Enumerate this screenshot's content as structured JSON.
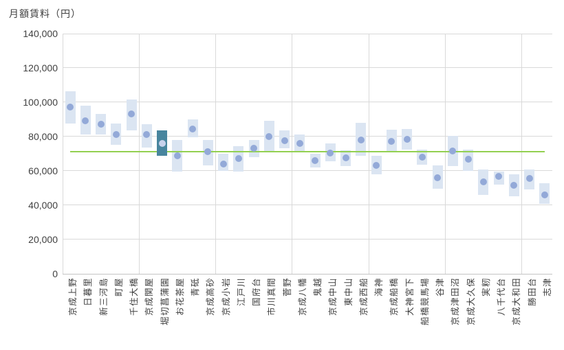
{
  "title": "月額賃料（円）",
  "chart_data": {
    "type": "range-bar-with-markers",
    "title": "月額賃料（円）",
    "xlabel": "",
    "ylabel": "月額賃料（円）",
    "ylim": [
      0,
      140000
    ],
    "yticks": [
      0,
      20000,
      40000,
      60000,
      80000,
      100000,
      120000,
      140000
    ],
    "grid": "horizontal gridlines every 20000; vertical group separators every 5 categories",
    "legend": "none",
    "categories": [
      "京成上野",
      "日暮里",
      "新三河島",
      "町屋",
      "千住大橋",
      "京成関屋",
      "堀切菖蒲園",
      "お花茶屋",
      "青砥",
      "京成高砂",
      "京成小岩",
      "江戸川",
      "国府台",
      "市川真間",
      "菅野",
      "京成八幡",
      "鬼越",
      "京成中山",
      "東中山",
      "京成西船",
      "海神",
      "京成船橋",
      "大神宮下",
      "船橋競馬場",
      "谷津",
      "京成津田沼",
      "京成大久保",
      "実籾",
      "八千代台",
      "京成大和田",
      "勝田台",
      "志津"
    ],
    "highlighted_category": "堀切菖蒲園",
    "highlighted_category_index": 6,
    "series": [
      {
        "name": "rent-range",
        "type": "floating-bar",
        "low": [
          87500,
          81000,
          81000,
          75000,
          83500,
          73500,
          68500,
          59500,
          79500,
          63000,
          60000,
          59500,
          68000,
          70500,
          73000,
          70500,
          62000,
          65500,
          62500,
          68500,
          58000,
          70500,
          72500,
          63500,
          49500,
          62500,
          60000,
          46000,
          52000,
          45000,
          49000,
          40500
        ],
        "high": [
          106500,
          98000,
          93000,
          87500,
          101500,
          87000,
          83500,
          78000,
          90000,
          78000,
          70000,
          74500,
          78000,
          89000,
          83500,
          81000,
          70000,
          76000,
          72000,
          88000,
          68500,
          84000,
          84500,
          72500,
          63000,
          80500,
          72500,
          60500,
          59500,
          58000,
          60500,
          52500
        ]
      },
      {
        "name": "rent-midpoint",
        "type": "point",
        "values": [
          97000,
          89000,
          87000,
          81000,
          93000,
          81000,
          76000,
          68500,
          84500,
          71000,
          64000,
          67000,
          73000,
          80000,
          77500,
          76000,
          66000,
          70500,
          67500,
          78000,
          63000,
          77000,
          78500,
          68000,
          56000,
          71500,
          66500,
          53500,
          56500,
          51500,
          55500,
          46000
        ]
      },
      {
        "name": "reference-line",
        "type": "hline",
        "value": 71300
      }
    ]
  },
  "colors": {
    "range_box": "#dbe5f2",
    "range_box_highlight": "#48859e",
    "marker": "#93a9d8",
    "marker_on_highlight": "#c8d2ec",
    "reference_line": "#92d050",
    "gridline": "#d9d9d9",
    "axis_line": "#c3c3c3",
    "text": "#404040",
    "background": "#ffffff"
  }
}
